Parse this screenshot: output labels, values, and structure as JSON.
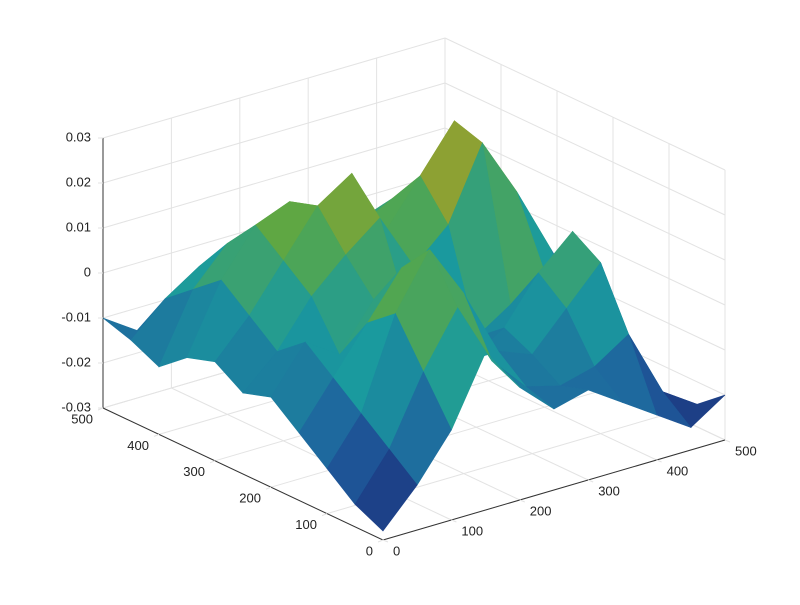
{
  "chart_data": {
    "type": "surface",
    "x": [
      0,
      50,
      100,
      150,
      200,
      250,
      300,
      350,
      400,
      450,
      500
    ],
    "y": [
      0,
      50,
      100,
      150,
      200,
      250,
      300,
      350,
      400,
      450,
      500
    ],
    "z": [
      [
        -0.028,
        -0.02,
        -0.01,
        0.005,
        -0.005,
        -0.012,
        -0.01,
        -0.015,
        -0.02,
        -0.025,
        -0.02
      ],
      [
        -0.025,
        -0.015,
        0.0,
        0.012,
        -0.002,
        -0.01,
        -0.012,
        -0.01,
        -0.005,
        -0.02,
        -0.025
      ],
      [
        -0.02,
        -0.01,
        0.01,
        0.022,
        0.01,
        -0.005,
        -0.008,
        0.0,
        0.008,
        -0.015,
        -0.028
      ],
      [
        -0.015,
        -0.005,
        0.005,
        0.015,
        0.005,
        -0.01,
        -0.005,
        0.005,
        0.012,
        -0.01,
        -0.022
      ],
      [
        -0.01,
        0.0,
        -0.005,
        0.005,
        0.0,
        -0.008,
        -0.01,
        -0.005,
        0.0,
        -0.012,
        -0.018
      ],
      [
        -0.012,
        -0.005,
        0.005,
        0.012,
        0.018,
        0.005,
        0.012,
        0.028,
        0.015,
        0.0,
        -0.015
      ],
      [
        -0.008,
        0.0,
        0.01,
        0.02,
        0.025,
        0.01,
        0.02,
        0.03,
        0.018,
        0.005,
        -0.01
      ],
      [
        -0.01,
        0.005,
        0.015,
        0.018,
        0.012,
        0.008,
        0.012,
        0.015,
        0.005,
        0.01,
        -0.005
      ],
      [
        -0.015,
        0.0,
        0.008,
        0.005,
        0.0,
        0.0,
        0.005,
        0.0,
        -0.008,
        0.012,
        0.0
      ],
      [
        -0.012,
        -0.005,
        0.0,
        0.002,
        -0.005,
        -0.01,
        -0.005,
        -0.01,
        -0.015,
        0.0,
        -0.01
      ],
      [
        -0.01,
        -0.015,
        -0.01,
        -0.008,
        -0.012,
        -0.015,
        -0.012,
        -0.015,
        -0.02,
        -0.015,
        -0.02
      ]
    ],
    "xlim": [
      0,
      500
    ],
    "ylim": [
      0,
      500
    ],
    "zlim": [
      -0.03,
      0.03
    ],
    "xticks": [
      0,
      100,
      200,
      300,
      400,
      500
    ],
    "yticks": [
      0,
      100,
      200,
      300,
      400,
      500
    ],
    "zticks": [
      -0.03,
      -0.02,
      -0.01,
      0,
      0.01,
      0.02,
      0.03
    ],
    "grid": true,
    "colormap": [
      "#1b1f6e",
      "#1f5f9e",
      "#1a9a9e",
      "#5aa845",
      "#c09a20"
    ]
  }
}
